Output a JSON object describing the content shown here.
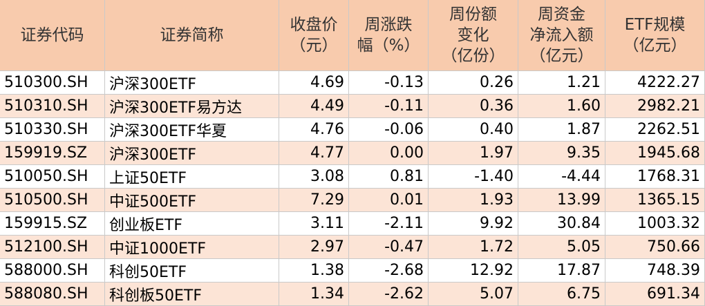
{
  "table": {
    "header": [
      [
        "证券代码"
      ],
      [
        "证券简称"
      ],
      [
        "收盘价",
        "（元）"
      ],
      [
        "周涨跌",
        "幅（%）"
      ],
      [
        "周份额",
        "变化",
        "（亿份）"
      ],
      [
        "周资金",
        "净流入额",
        "（亿元）"
      ],
      [
        "ETF规模",
        "（亿元）"
      ]
    ],
    "rows": [
      [
        "510300.SH",
        "沪深300ETF",
        "4.69",
        "-0.13",
        "0.26",
        "1.21",
        "4222.27"
      ],
      [
        "510310.SH",
        "沪深300ETF易方达",
        "4.49",
        "-0.11",
        "0.36",
        "1.60",
        "2982.21"
      ],
      [
        "510330.SH",
        "沪深300ETF华夏",
        "4.76",
        "-0.06",
        "0.40",
        "1.87",
        "2262.51"
      ],
      [
        "159919.SZ",
        "沪深300ETF",
        "4.77",
        "0.00",
        "1.97",
        "9.35",
        "1945.68"
      ],
      [
        "510050.SH",
        "上证50ETF",
        "3.08",
        "0.81",
        "-1.40",
        "-4.44",
        "1768.31"
      ],
      [
        "510500.SH",
        "中证500ETF",
        "7.29",
        "0.01",
        "1.93",
        "13.99",
        "1365.15"
      ],
      [
        "159915.SZ",
        "创业板ETF",
        "3.11",
        "-2.11",
        "9.92",
        "30.84",
        "1003.32"
      ],
      [
        "512100.SH",
        "中证1000ETF",
        "2.97",
        "-0.47",
        "1.72",
        "5.05",
        "750.66"
      ],
      [
        "588000.SH",
        "科创50ETF",
        "1.38",
        "-2.68",
        "12.92",
        "17.87",
        "748.39"
      ],
      [
        "588080.SH",
        "科创板50ETF",
        "1.34",
        "-2.62",
        "5.07",
        "6.75",
        "691.34"
      ]
    ]
  }
}
